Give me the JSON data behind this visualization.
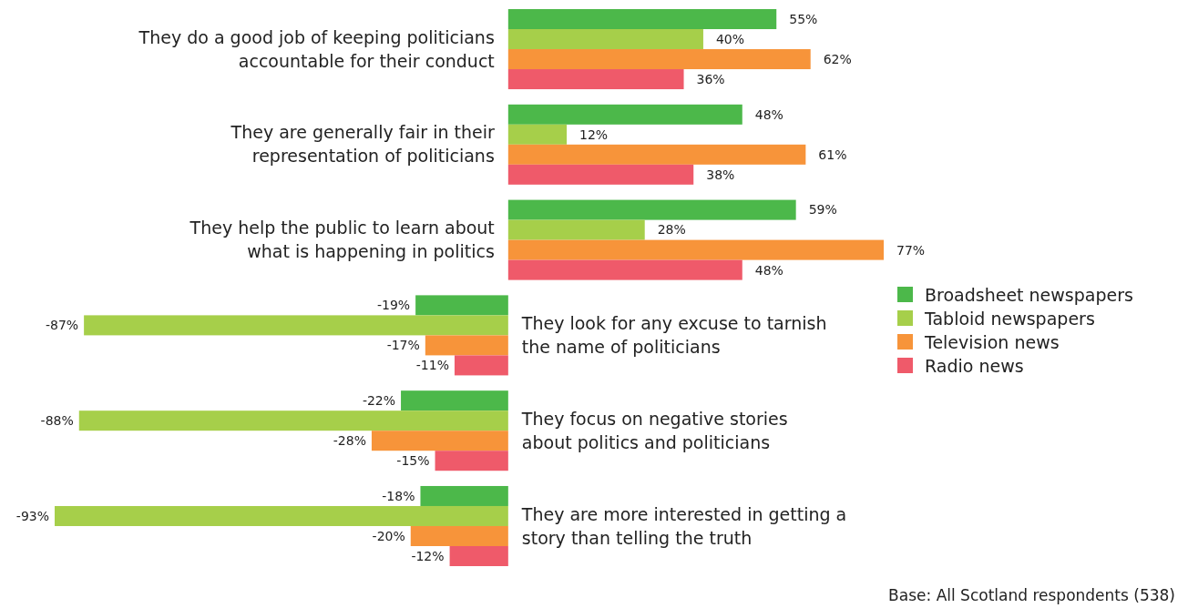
{
  "chart_data": {
    "type": "bar",
    "orientation": "horizontal",
    "categories": [
      "They do a good job of keeping politicians accountable for their conduct",
      "They are generally fair in their representation of politicians",
      "They help the public to learn about what is happening in politics",
      "They look for any excuse to tarnish the name of politicians",
      "They focus on negative stories about politics and politicians",
      "They are more interested in getting a story than telling the truth"
    ],
    "series": [
      {
        "name": "Broadsheet newspapers",
        "color": "#4cb84a",
        "values": [
          55,
          48,
          59,
          -19,
          -22,
          -18
        ],
        "value_labels": [
          "55%",
          "48%",
          "59%",
          "-19%",
          "-22%",
          "-18%"
        ]
      },
      {
        "name": "Tabloid newspapers",
        "color": "#a6cf4a",
        "values": [
          40,
          12,
          28,
          -87,
          -88,
          -93
        ],
        "value_labels": [
          "40%",
          "12%",
          "28%",
          "-87%",
          "-88%",
          "-93%"
        ]
      },
      {
        "name": "Television news",
        "color": "#f7943a",
        "values": [
          62,
          61,
          77,
          -17,
          -28,
          -20
        ],
        "value_labels": [
          "62%",
          "61%",
          "77%",
          "-17%",
          "-28%",
          "-20%"
        ]
      },
      {
        "name": "Radio news",
        "color": "#ef5a6a",
        "values": [
          36,
          38,
          48,
          -11,
          -15,
          -12
        ],
        "value_labels": [
          "36%",
          "38%",
          "48%",
          "-11%",
          "-15%",
          "-12%"
        ]
      }
    ],
    "legend": "right",
    "annotations": [
      "Base: All Scotland respondents (538)"
    ]
  }
}
